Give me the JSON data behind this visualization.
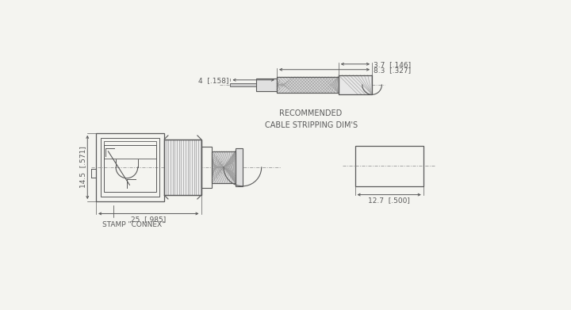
{
  "bg_color": "#f4f4f0",
  "line_color": "#5a5a5a",
  "title": "RECOMMENDED\nCABLE STRIPPING DIM'S",
  "title_fontsize": 7,
  "annotations": {
    "dim_37": "3.7  [.146]",
    "dim_83": "8.3  [.327]",
    "dim_4": "4  [.158]",
    "dim_145": "14.5  [.571]",
    "dim_25": "25  [.985]",
    "dim_127": "12.7  [.500]",
    "stamp": "STAMP \"CONNEX\""
  }
}
